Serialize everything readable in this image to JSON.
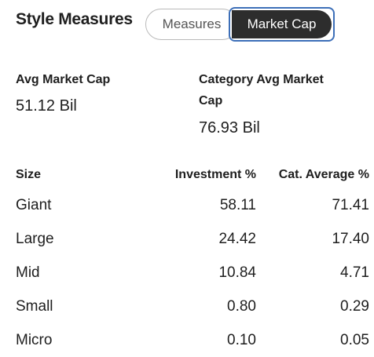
{
  "section": {
    "title": "Style Measures"
  },
  "toggle": {
    "options": [
      "Measures",
      "Market Cap"
    ],
    "selected": "Market Cap"
  },
  "stats": {
    "avg_market_cap": {
      "label": "Avg Market Cap",
      "value": "51.12 Bil"
    },
    "category_avg_market_cap": {
      "label_line1": "Category Avg Market",
      "label_line2": "Cap",
      "value": "76.93 Bil"
    }
  },
  "table": {
    "headers": [
      "Size",
      "Investment %",
      "Cat. Average %"
    ],
    "rows": [
      {
        "size": "Giant",
        "investment": "58.11",
        "cat_average": "71.41"
      },
      {
        "size": "Large",
        "investment": "24.42",
        "cat_average": "17.40"
      },
      {
        "size": "Mid",
        "investment": "10.84",
        "cat_average": "4.71"
      },
      {
        "size": "Small",
        "investment": "0.80",
        "cat_average": "0.29"
      },
      {
        "size": "Micro",
        "investment": "0.10",
        "cat_average": "0.05"
      }
    ]
  }
}
